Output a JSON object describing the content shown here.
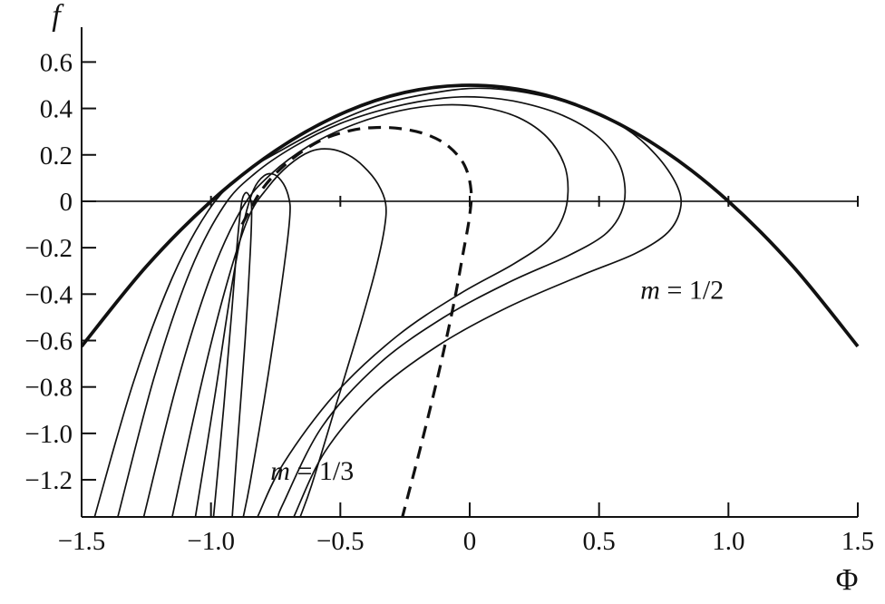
{
  "figure": {
    "background": "#ffffff",
    "line_color": "#111111"
  },
  "chart_data": {
    "type": "line",
    "title": "",
    "xlabel": "Φ",
    "ylabel": "f",
    "xlim": [
      -1.5,
      1.5
    ],
    "ylim": [
      -1.36,
      0.75
    ],
    "grid": false,
    "zero_line": true,
    "xticks": {
      "values": [
        -1.5,
        -1.0,
        -0.5,
        0,
        0.5,
        1.0,
        1.5
      ],
      "labels": [
        "−1.5",
        "−1.0",
        "−0.5",
        "0",
        "0.5",
        "1.0",
        "1.5"
      ]
    },
    "yticks": {
      "values": [
        0.6,
        0.4,
        0.2,
        0,
        -0.2,
        -0.4,
        -0.6,
        -0.8,
        -1.0,
        -1.2
      ],
      "labels": [
        "0.6",
        "0.4",
        "0.2",
        "0",
        "−0.2",
        "−0.4",
        "−0.6",
        "−0.8",
        "−1.0",
        "−1.2"
      ]
    },
    "zero_ticks": [
      -1.0,
      -0.5,
      0,
      0.5,
      1.0,
      1.5
    ],
    "annotations": [
      {
        "name": "m-half-label",
        "var": "m",
        "rest": " = 1/2",
        "x": 0.66,
        "y": -0.42
      },
      {
        "name": "m-third-label",
        "var": "m",
        "rest": " = 1/3",
        "x": -0.77,
        "y": -1.2
      }
    ],
    "series": [
      {
        "name": "envelope-m-1-2",
        "style": "thick",
        "points": [
          [
            -1.5,
            -0.625
          ],
          [
            -1.25,
            -0.281
          ],
          [
            -1.0,
            0
          ],
          [
            -0.75,
            0.219
          ],
          [
            -0.5,
            0.375
          ],
          [
            -0.25,
            0.469
          ],
          [
            0,
            0.5
          ],
          [
            0.25,
            0.469
          ],
          [
            0.5,
            0.375
          ],
          [
            0.75,
            0.219
          ],
          [
            1.0,
            0
          ],
          [
            1.25,
            -0.281
          ],
          [
            1.5,
            -0.625
          ]
        ]
      },
      {
        "name": "separatrix-m-1-3",
        "style": "dashed",
        "points": [
          [
            -0.88,
            -0.1
          ],
          [
            -0.8,
            0.055
          ],
          [
            -0.7,
            0.17
          ],
          [
            -0.58,
            0.26
          ],
          [
            -0.46,
            0.305
          ],
          [
            -0.36,
            0.318
          ],
          [
            -0.26,
            0.312
          ],
          [
            -0.16,
            0.285
          ],
          [
            -0.08,
            0.235
          ],
          [
            -0.02,
            0.155
          ],
          [
            0.005,
            0.05
          ],
          [
            0.0,
            -0.06
          ],
          [
            -0.025,
            -0.22
          ],
          [
            -0.065,
            -0.46
          ],
          [
            -0.12,
            -0.74
          ],
          [
            -0.19,
            -1.06
          ],
          [
            -0.26,
            -1.36
          ]
        ]
      },
      {
        "name": "trajectory-1",
        "style": "thin",
        "points": [
          [
            -0.99,
            -1.36
          ],
          [
            -0.95,
            -0.88
          ],
          [
            -0.92,
            -0.48
          ],
          [
            -0.897,
            -0.16
          ],
          [
            -0.882,
            -0.01
          ],
          [
            -0.868,
            0.035
          ],
          [
            -0.853,
            0.025
          ],
          [
            -0.843,
            -0.03
          ],
          [
            -0.848,
            -0.22
          ],
          [
            -0.868,
            -0.6
          ],
          [
            -0.898,
            -1.05
          ],
          [
            -0.918,
            -1.36
          ]
        ]
      },
      {
        "name": "trajectory-2",
        "style": "thin",
        "points": [
          [
            -1.06,
            -1.36
          ],
          [
            -0.985,
            -0.84
          ],
          [
            -0.925,
            -0.4
          ],
          [
            -0.875,
            -0.1
          ],
          [
            -0.835,
            0.05
          ],
          [
            -0.795,
            0.11
          ],
          [
            -0.755,
            0.115
          ],
          [
            -0.72,
            0.075
          ],
          [
            -0.698,
            0.01
          ],
          [
            -0.695,
            -0.06
          ],
          [
            -0.71,
            -0.22
          ],
          [
            -0.745,
            -0.5
          ],
          [
            -0.795,
            -0.86
          ],
          [
            -0.85,
            -1.22
          ],
          [
            -0.875,
            -1.36
          ]
        ]
      },
      {
        "name": "trajectory-3",
        "style": "thin",
        "points": [
          [
            -1.15,
            -1.36
          ],
          [
            -1.04,
            -0.8
          ],
          [
            -0.94,
            -0.36
          ],
          [
            -0.855,
            -0.07
          ],
          [
            -0.78,
            0.06
          ],
          [
            -0.7,
            0.155
          ],
          [
            -0.615,
            0.215
          ],
          [
            -0.54,
            0.225
          ],
          [
            -0.47,
            0.2
          ],
          [
            -0.41,
            0.15
          ],
          [
            -0.355,
            0.075
          ],
          [
            -0.325,
            -0.01
          ],
          [
            -0.33,
            -0.12
          ],
          [
            -0.365,
            -0.3
          ],
          [
            -0.43,
            -0.56
          ],
          [
            -0.52,
            -0.89
          ],
          [
            -0.61,
            -1.22
          ],
          [
            -0.655,
            -1.36
          ]
        ]
      },
      {
        "name": "trajectory-4",
        "style": "thin",
        "points": [
          [
            -1.26,
            -1.36
          ],
          [
            -1.13,
            -0.78
          ],
          [
            -1.0,
            -0.32
          ],
          [
            -0.88,
            -0.03
          ],
          [
            -0.77,
            0.115
          ],
          [
            -0.62,
            0.24
          ],
          [
            -0.45,
            0.33
          ],
          [
            -0.27,
            0.39
          ],
          [
            -0.1,
            0.415
          ],
          [
            0.05,
            0.405
          ],
          [
            0.19,
            0.36
          ],
          [
            0.3,
            0.275
          ],
          [
            0.365,
            0.16
          ],
          [
            0.38,
            0.04
          ],
          [
            0.36,
            -0.07
          ],
          [
            0.3,
            -0.17
          ],
          [
            0.17,
            -0.27
          ],
          [
            -0.04,
            -0.4
          ],
          [
            -0.28,
            -0.58
          ],
          [
            -0.52,
            -0.83
          ],
          [
            -0.72,
            -1.13
          ],
          [
            -0.82,
            -1.36
          ]
        ]
      },
      {
        "name": "trajectory-5",
        "style": "thin",
        "points": [
          [
            -1.36,
            -1.36
          ],
          [
            -1.22,
            -0.76
          ],
          [
            -1.08,
            -0.3
          ],
          [
            -0.95,
            -0.02
          ],
          [
            -0.83,
            0.12
          ],
          [
            -0.68,
            0.235
          ],
          [
            -0.5,
            0.335
          ],
          [
            -0.3,
            0.405
          ],
          [
            -0.1,
            0.445
          ],
          [
            0.05,
            0.448
          ],
          [
            0.2,
            0.425
          ],
          [
            0.36,
            0.37
          ],
          [
            0.49,
            0.285
          ],
          [
            0.57,
            0.18
          ],
          [
            0.6,
            0.06
          ],
          [
            0.585,
            -0.05
          ],
          [
            0.52,
            -0.145
          ],
          [
            0.38,
            -0.235
          ],
          [
            0.15,
            -0.35
          ],
          [
            -0.1,
            -0.5
          ],
          [
            -0.35,
            -0.7
          ],
          [
            -0.57,
            -0.97
          ],
          [
            -0.72,
            -1.3
          ],
          [
            -0.74,
            -1.36
          ]
        ]
      },
      {
        "name": "trajectory-6",
        "style": "thin",
        "points": [
          [
            -1.45,
            -1.36
          ],
          [
            -1.3,
            -0.78
          ],
          [
            -1.15,
            -0.33
          ],
          [
            -1.01,
            -0.04
          ],
          [
            -0.88,
            0.115
          ],
          [
            -0.72,
            0.225
          ],
          [
            -0.55,
            0.325
          ],
          [
            -0.35,
            0.415
          ],
          [
            -0.15,
            0.465
          ],
          [
            0.03,
            0.487
          ],
          [
            0.22,
            0.468
          ],
          [
            0.42,
            0.41
          ],
          [
            0.6,
            0.315
          ],
          [
            0.72,
            0.2
          ],
          [
            0.8,
            0.07
          ],
          [
            0.815,
            -0.03
          ],
          [
            0.765,
            -0.135
          ],
          [
            0.64,
            -0.225
          ],
          [
            0.43,
            -0.32
          ],
          [
            0.15,
            -0.455
          ],
          [
            -0.12,
            -0.62
          ],
          [
            -0.37,
            -0.83
          ],
          [
            -0.56,
            -1.08
          ],
          [
            -0.68,
            -1.36
          ]
        ]
      }
    ]
  }
}
